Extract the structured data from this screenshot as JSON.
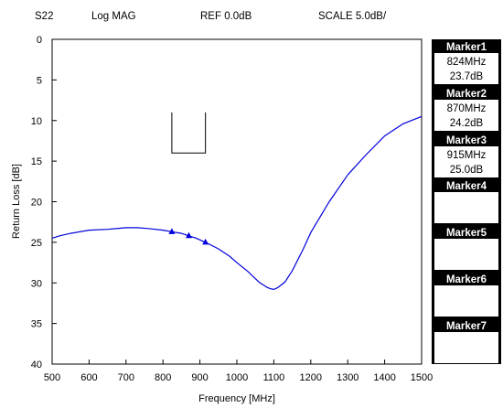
{
  "header": {
    "param": "S22",
    "format": "Log MAG",
    "ref": "REF 0.0dB",
    "scale": "SCALE 5.0dB/"
  },
  "chart_data": {
    "type": "line",
    "xlabel": "Frequency [MHz]",
    "ylabel": "Return Loss [dB]",
    "xlim": [
      500,
      1500
    ],
    "ylim": [
      0,
      40
    ],
    "y_inverted": true,
    "grid": false,
    "x_ticks": [
      "500",
      "600",
      "700",
      "800",
      "900",
      "1000",
      "1100",
      "1200",
      "1300",
      "1400",
      "1500"
    ],
    "y_ticks": [
      "0",
      "5",
      "10",
      "15",
      "20",
      "25",
      "30",
      "35",
      "40"
    ],
    "line_color": "#0000dd",
    "series": [
      {
        "x": [
          500,
          520,
          550,
          600,
          650,
          700,
          730,
          760,
          800,
          824,
          850,
          870,
          890,
          915,
          950,
          980,
          1000,
          1030,
          1060,
          1080,
          1090,
          1100,
          1110,
          1130,
          1150,
          1180,
          1200,
          1250,
          1300,
          1350,
          1400,
          1450,
          1500
        ],
        "y": [
          24.5,
          24.2,
          23.9,
          23.5,
          23.4,
          23.2,
          23.2,
          23.3,
          23.5,
          23.7,
          23.9,
          24.2,
          24.5,
          25.0,
          25.8,
          26.7,
          27.5,
          28.6,
          29.9,
          30.5,
          30.7,
          30.8,
          30.6,
          29.9,
          28.5,
          25.8,
          23.8,
          20.0,
          16.7,
          14.2,
          11.9,
          10.4,
          9.5
        ]
      }
    ],
    "markers": [
      {
        "label": "1",
        "x": 824,
        "y": 23.7
      },
      {
        "label": "2",
        "x": 870,
        "y": 24.2
      },
      {
        "label": "3",
        "x": 915,
        "y": 25.0
      }
    ],
    "spec_box": {
      "x_start": 824,
      "x_end": 915,
      "y_top": 9,
      "y_bottom": 14
    }
  },
  "markers_panel": [
    {
      "title": "Marker1",
      "freq": "824MHz",
      "value": "23.7dB"
    },
    {
      "title": "Marker2",
      "freq": "870MHz",
      "value": "24.2dB"
    },
    {
      "title": "Marker3",
      "freq": "915MHz",
      "value": "25.0dB"
    },
    {
      "title": "Marker4",
      "freq": "",
      "value": ""
    },
    {
      "title": "Marker5",
      "freq": "",
      "value": ""
    },
    {
      "title": "Marker6",
      "freq": "",
      "value": ""
    },
    {
      "title": "Marker7",
      "freq": "",
      "value": ""
    }
  ]
}
